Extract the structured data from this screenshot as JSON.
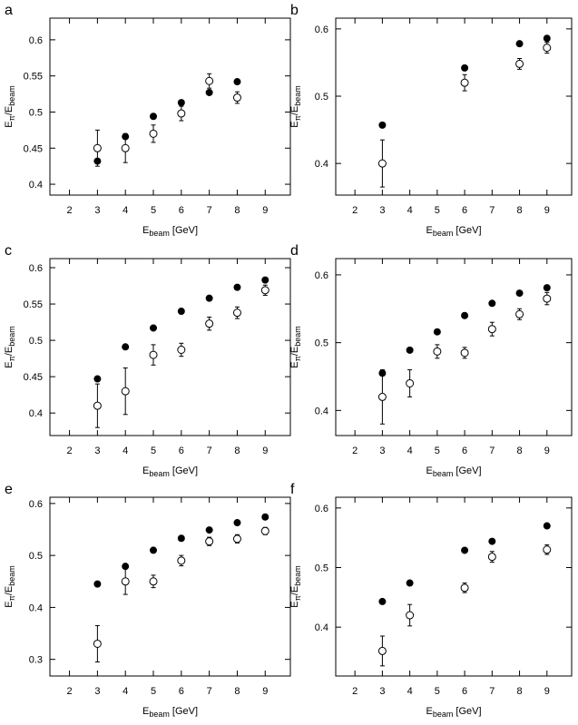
{
  "chart_data": [
    {
      "type": "scatter",
      "panel_label": "a",
      "x_label": [
        "E",
        "beam",
        " [GeV]"
      ],
      "y_label": [
        "E",
        "π",
        "/E",
        "beam"
      ],
      "xlim": [
        1.3,
        9.9
      ],
      "xticks": [
        2,
        3,
        4,
        5,
        6,
        7,
        8,
        9
      ],
      "ylim": [
        0.385,
        0.63
      ],
      "yticks": [
        0.4,
        0.45,
        0.5,
        0.55,
        0.6
      ],
      "series": [
        {
          "marker": "filled",
          "color": "#000000",
          "x": [
            3,
            4,
            5,
            6,
            7,
            8
          ],
          "values": [
            0.432,
            0.466,
            0.494,
            0.513,
            0.527,
            0.542
          ]
        },
        {
          "marker": "open",
          "color": "#000000",
          "x": [
            3,
            4,
            5,
            6,
            7,
            8
          ],
          "values": [
            0.45,
            0.45,
            0.47,
            0.498,
            0.543,
            0.52
          ],
          "errors": [
            0.025,
            0.02,
            0.012,
            0.01,
            0.01,
            0.008
          ]
        }
      ]
    },
    {
      "type": "scatter",
      "panel_label": "b",
      "x_label": [
        "E",
        "beam",
        " [GeV]"
      ],
      "y_label": [
        "E",
        "π",
        "/E",
        "beam"
      ],
      "xlim": [
        1.3,
        9.9
      ],
      "xticks": [
        2,
        3,
        4,
        5,
        6,
        7,
        8,
        9
      ],
      "ylim": [
        0.353,
        0.616
      ],
      "yticks": [
        0.4,
        0.5,
        0.6
      ],
      "series": [
        {
          "marker": "filled",
          "color": "#000000",
          "x": [
            3,
            6,
            8,
            9
          ],
          "values": [
            0.457,
            0.542,
            0.578,
            0.586
          ]
        },
        {
          "marker": "open",
          "color": "#000000",
          "x": [
            3,
            6,
            8,
            9
          ],
          "values": [
            0.4,
            0.52,
            0.548,
            0.572
          ],
          "errors": [
            0.035,
            0.012,
            0.008,
            0.008
          ]
        }
      ]
    },
    {
      "type": "scatter",
      "panel_label": "c",
      "x_label": [
        "E",
        "beam",
        " [GeV]"
      ],
      "y_label": [
        "E",
        "π",
        "/E",
        "beam"
      ],
      "xlim": [
        1.3,
        9.9
      ],
      "xticks": [
        2,
        3,
        4,
        5,
        6,
        7,
        8,
        9
      ],
      "ylim": [
        0.369,
        0.6125
      ],
      "yticks": [
        0.4,
        0.45,
        0.5,
        0.55,
        0.6
      ],
      "series": [
        {
          "marker": "filled",
          "color": "#000000",
          "x": [
            3,
            4,
            5,
            6,
            7,
            8,
            9
          ],
          "values": [
            0.447,
            0.491,
            0.517,
            0.54,
            0.558,
            0.573,
            0.583
          ]
        },
        {
          "marker": "open",
          "color": "#000000",
          "x": [
            3,
            4,
            5,
            6,
            7,
            8,
            9
          ],
          "values": [
            0.41,
            0.43,
            0.48,
            0.487,
            0.523,
            0.538,
            0.569
          ],
          "errors": [
            0.03,
            0.032,
            0.014,
            0.009,
            0.009,
            0.008,
            0.007
          ]
        }
      ]
    },
    {
      "type": "scatter",
      "panel_label": "d",
      "x_label": [
        "E",
        "beam",
        " [GeV]"
      ],
      "y_label": [
        "E",
        "π",
        "/E",
        "beam"
      ],
      "xlim": [
        1.3,
        9.9
      ],
      "xticks": [
        2,
        3,
        4,
        5,
        6,
        7,
        8,
        9
      ],
      "ylim": [
        0.363,
        0.624
      ],
      "yticks": [
        0.4,
        0.5,
        0.6
      ],
      "series": [
        {
          "marker": "filled",
          "color": "#000000",
          "x": [
            3,
            4,
            5,
            6,
            7,
            8,
            9
          ],
          "values": [
            0.455,
            0.489,
            0.516,
            0.54,
            0.558,
            0.573,
            0.581
          ]
        },
        {
          "marker": "open",
          "color": "#000000",
          "x": [
            3,
            4,
            5,
            6,
            7,
            8,
            9
          ],
          "values": [
            0.42,
            0.44,
            0.487,
            0.485,
            0.52,
            0.542,
            0.565
          ],
          "errors": [
            0.04,
            0.02,
            0.01,
            0.008,
            0.01,
            0.008,
            0.009
          ]
        }
      ]
    },
    {
      "type": "scatter",
      "panel_label": "e",
      "x_label": [
        "E",
        "beam",
        " [GeV]"
      ],
      "y_label": [
        "E",
        "π",
        "/E",
        "beam"
      ],
      "xlim": [
        1.3,
        9.9
      ],
      "xticks": [
        2,
        3,
        4,
        5,
        6,
        7,
        8,
        9
      ],
      "ylim": [
        0.268,
        0.612
      ],
      "yticks": [
        0.3,
        0.4,
        0.5,
        0.6
      ],
      "series": [
        {
          "marker": "filled",
          "color": "#000000",
          "x": [
            3,
            4,
            5,
            6,
            7,
            8,
            9
          ],
          "values": [
            0.445,
            0.479,
            0.51,
            0.533,
            0.549,
            0.563,
            0.574
          ]
        },
        {
          "marker": "open",
          "color": "#000000",
          "x": [
            3,
            4,
            5,
            6,
            7,
            8,
            9
          ],
          "values": [
            0.33,
            0.45,
            0.45,
            0.49,
            0.527,
            0.532,
            0.547
          ],
          "errors": [
            0.035,
            0.025,
            0.012,
            0.01,
            0.008,
            0.008,
            0.007
          ]
        }
      ]
    },
    {
      "type": "scatter",
      "panel_label": "f",
      "x_label": [
        "E",
        "beam",
        " [GeV]"
      ],
      "y_label": [
        "E",
        "π",
        "/E",
        "beam"
      ],
      "xlim": [
        1.3,
        9.9
      ],
      "xticks": [
        2,
        3,
        4,
        5,
        6,
        7,
        8,
        9
      ],
      "ylim": [
        0.318,
        0.618
      ],
      "yticks": [
        0.4,
        0.5,
        0.6
      ],
      "series": [
        {
          "marker": "filled",
          "color": "#000000",
          "x": [
            3,
            4,
            6,
            7,
            9
          ],
          "values": [
            0.443,
            0.474,
            0.529,
            0.544,
            0.57
          ]
        },
        {
          "marker": "open",
          "color": "#000000",
          "x": [
            3,
            4,
            6,
            7,
            9
          ],
          "values": [
            0.36,
            0.42,
            0.466,
            0.518,
            0.53
          ],
          "errors": [
            0.025,
            0.018,
            0.008,
            0.009,
            0.008
          ]
        }
      ]
    }
  ]
}
